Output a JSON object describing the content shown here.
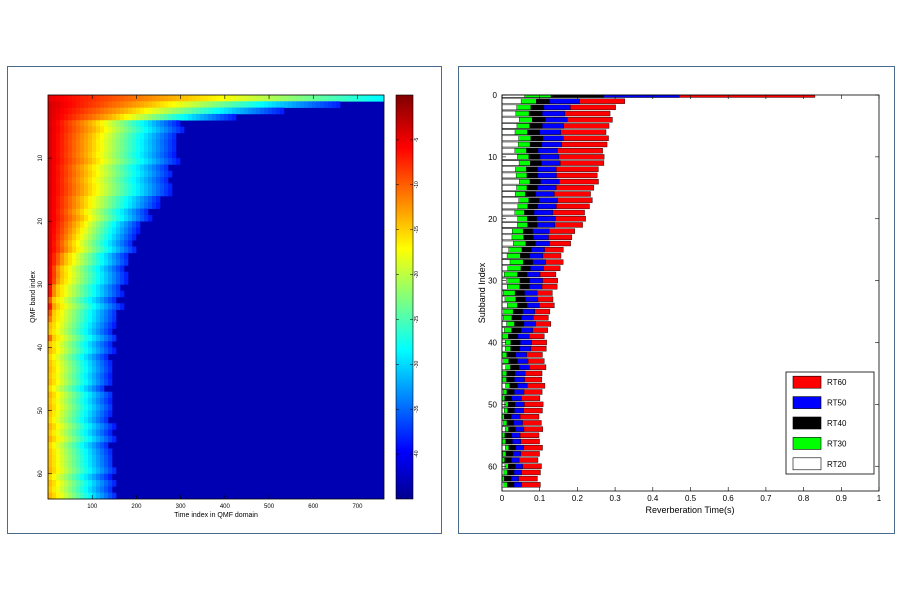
{
  "chart_data": [
    {
      "type": "heatmap",
      "title": "",
      "xlabel": "Time index in QMF domain",
      "ylabel": "QMF band index",
      "xlim": [
        0,
        760
      ],
      "ylim": [
        0,
        64
      ],
      "xticks": [
        "100",
        "200",
        "300",
        "400",
        "500",
        "600",
        "700"
      ],
      "yticks": [
        "10",
        "20",
        "30",
        "40",
        "50",
        "60"
      ],
      "colorbar_ticks": [
        "-5",
        "-10",
        "-15",
        "-20",
        "-25",
        "-30",
        "-35",
        "-40"
      ],
      "colorbar_range": [
        -45,
        0
      ],
      "decay_front": {
        "bands": [
          0,
          4,
          10,
          15,
          20,
          25,
          30,
          35,
          40,
          45,
          50,
          55,
          60,
          63
        ],
        "time_end": [
          780,
          300,
          285,
          272,
          210,
          185,
          170,
          155,
          145,
          140,
          145,
          145,
          150,
          150
        ]
      },
      "hot_front": {
        "bands": [
          0,
          4,
          10,
          15,
          20,
          25,
          30,
          35,
          40,
          45,
          50,
          55,
          60,
          63
        ],
        "time_end": [
          260,
          100,
          88,
          80,
          65,
          40,
          18,
          5,
          0,
          0,
          0,
          0,
          0,
          0
        ]
      }
    },
    {
      "type": "bar",
      "orientation": "horizontal",
      "title": "",
      "xlabel": "Reverberation Time(s)",
      "ylabel": "Subband Index",
      "xlim": [
        0,
        1
      ],
      "ylim": [
        0,
        64
      ],
      "xticks": [
        "0",
        "0.1",
        "0.2",
        "0.3",
        "0.4",
        "0.5",
        "0.6",
        "0.7",
        "0.8",
        "0.9",
        "1"
      ],
      "yticks": [
        "0",
        "10",
        "20",
        "30",
        "40",
        "50",
        "60"
      ],
      "legend_position": "bottom-right",
      "profile": {
        "bands": [
          0,
          1,
          3,
          10,
          20,
          25,
          30,
          40,
          50,
          60,
          63
        ],
        "RT20": [
          0.06,
          0.045,
          0.04,
          0.04,
          0.04,
          0.02,
          0.01,
          0.005,
          0.003,
          0.003,
          0.003
        ],
        "RT30": [
          0.13,
          0.085,
          0.075,
          0.07,
          0.065,
          0.055,
          0.045,
          0.02,
          0.012,
          0.012,
          0.012
        ],
        "RT40": [
          0.27,
          0.12,
          0.11,
          0.1,
          0.09,
          0.08,
          0.07,
          0.045,
          0.03,
          0.03,
          0.03
        ],
        "RT50": [
          0.47,
          0.2,
          0.17,
          0.15,
          0.14,
          0.115,
          0.105,
          0.075,
          0.055,
          0.05,
          0.05
        ],
        "RT60": [
          0.83,
          0.32,
          0.29,
          0.27,
          0.22,
          0.165,
          0.145,
          0.115,
          0.105,
          0.1,
          0.1
        ]
      },
      "series": [
        {
          "name": "RT60",
          "color": "#ff0000"
        },
        {
          "name": "RT50",
          "color": "#0000ff"
        },
        {
          "name": "RT40",
          "color": "#000000"
        },
        {
          "name": "RT30",
          "color": "#00ff00"
        },
        {
          "name": "RT20",
          "color": "#ffffff"
        }
      ]
    }
  ]
}
